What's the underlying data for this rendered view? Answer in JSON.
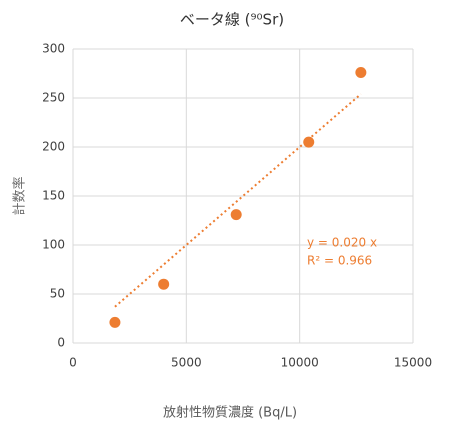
{
  "chart_data": {
    "type": "scatter",
    "title": "ベータ線 (⁹⁰Sr)",
    "x_label": "放射性物質濃度 (Bq/L)",
    "y_label": "計数率",
    "series": [
      {
        "name": "計数率",
        "color": "#ed7d31",
        "x": [
          1850,
          4000,
          7200,
          10400,
          12700
        ],
        "values": [
          21,
          60,
          131,
          205,
          276
        ]
      }
    ],
    "trendline": {
      "slope": 0.02,
      "label": "y = 0.020 x",
      "r2_label": "R² = 0.966"
    },
    "xlim": [
      0,
      15000
    ],
    "xticks": [
      0,
      5000,
      10000,
      15000
    ],
    "ylim": [
      0,
      300
    ],
    "yticks": [
      0,
      50,
      100,
      150,
      200,
      250,
      300
    ],
    "grid": true
  }
}
